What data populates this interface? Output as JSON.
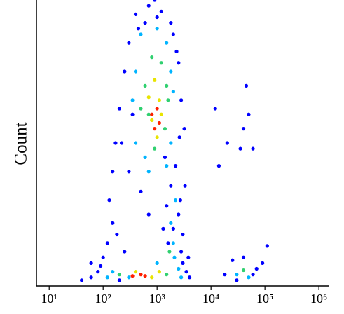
{
  "chart_data": {
    "type": "scatter",
    "y_label": "Count",
    "x_scale": "log",
    "xlim": [
      5.8,
      1560000
    ],
    "ylim": [
      0,
      100
    ],
    "xticks": [
      {
        "value": 10,
        "label": "10¹"
      },
      {
        "value": 100,
        "label": "10²"
      },
      {
        "value": 1000,
        "label": "10³"
      },
      {
        "value": 10000,
        "label": "10⁴"
      },
      {
        "value": 100000,
        "label": "10⁵"
      },
      {
        "value": 1000000,
        "label": "10⁶"
      }
    ],
    "series": [
      {
        "color": "#0000ff",
        "x": [
          400,
          700,
          1200,
          300,
          2000,
          250,
          2500,
          200,
          2800,
          220,
          2600,
          300,
          2200,
          500,
          1800,
          1500,
          2500,
          2000,
          3000,
          1600,
          2800,
          150,
          120,
          100,
          80,
          60,
          40,
          3000,
          3500,
          900,
          1800,
          350,
          3200,
          150,
          130,
          180,
          250,
          60,
          4000,
          18000,
          60000,
          90000,
          25000,
          40000,
          110000,
          45000,
          50000,
          40000,
          60000,
          12000,
          20000,
          14000,
          35000,
          1400,
          600,
          1000,
          2300,
          450,
          170,
          3300,
          700,
          1300,
          2700,
          90,
          200,
          3800,
          30000,
          70000
        ],
        "values": [
          95,
          98,
          96,
          85,
          88,
          75,
          78,
          62,
          65,
          50,
          52,
          40,
          42,
          33,
          35,
          28,
          25,
          20,
          18,
          15,
          12,
          22,
          15,
          10,
          5,
          3,
          2,
          8,
          5,
          100,
          92,
          60,
          55,
          40,
          30,
          18,
          12,
          8,
          3,
          4,
          4,
          8,
          9,
          10,
          14,
          70,
          60,
          55,
          48,
          62,
          50,
          42,
          48,
          45,
          92,
          94,
          82,
          90,
          50,
          35,
          25,
          20,
          30,
          7,
          2,
          10,
          2,
          6
        ]
      },
      {
        "color": "#00b4ff",
        "x": [
          500,
          1000,
          1500,
          400,
          1800,
          350,
          2000,
          400,
          1800,
          700,
          1500,
          1800,
          2000,
          150,
          300,
          2500,
          2800,
          30000,
          50000,
          1000,
          120,
          600,
          2200,
          2100
        ],
        "values": [
          88,
          90,
          85,
          75,
          75,
          65,
          68,
          50,
          50,
          40,
          42,
          22,
          15,
          5,
          3,
          6,
          3,
          4,
          3,
          8,
          3,
          45,
          30,
          10
        ]
      },
      {
        "color": "#30d070",
        "x": [
          800,
          1200,
          600,
          1500,
          700,
          1400,
          900,
          1700,
          200,
          1500,
          40000,
          500,
          1600
        ],
        "values": [
          80,
          78,
          70,
          70,
          60,
          55,
          48,
          12,
          4,
          4,
          5.5,
          62,
          65
        ]
      },
      {
        "color": "#e8e400",
        "x": [
          900,
          1100,
          800,
          1200,
          1000,
          400,
          1100,
          800,
          700
        ],
        "values": [
          72,
          65,
          58,
          60,
          52,
          5,
          5,
          3,
          66
        ]
      },
      {
        "color": "#ff2000",
        "x": [
          1000,
          900,
          1100,
          500,
          600,
          350,
          800
        ],
        "values": [
          62,
          55,
          57,
          4,
          3.5,
          3.5,
          60
        ]
      }
    ]
  }
}
